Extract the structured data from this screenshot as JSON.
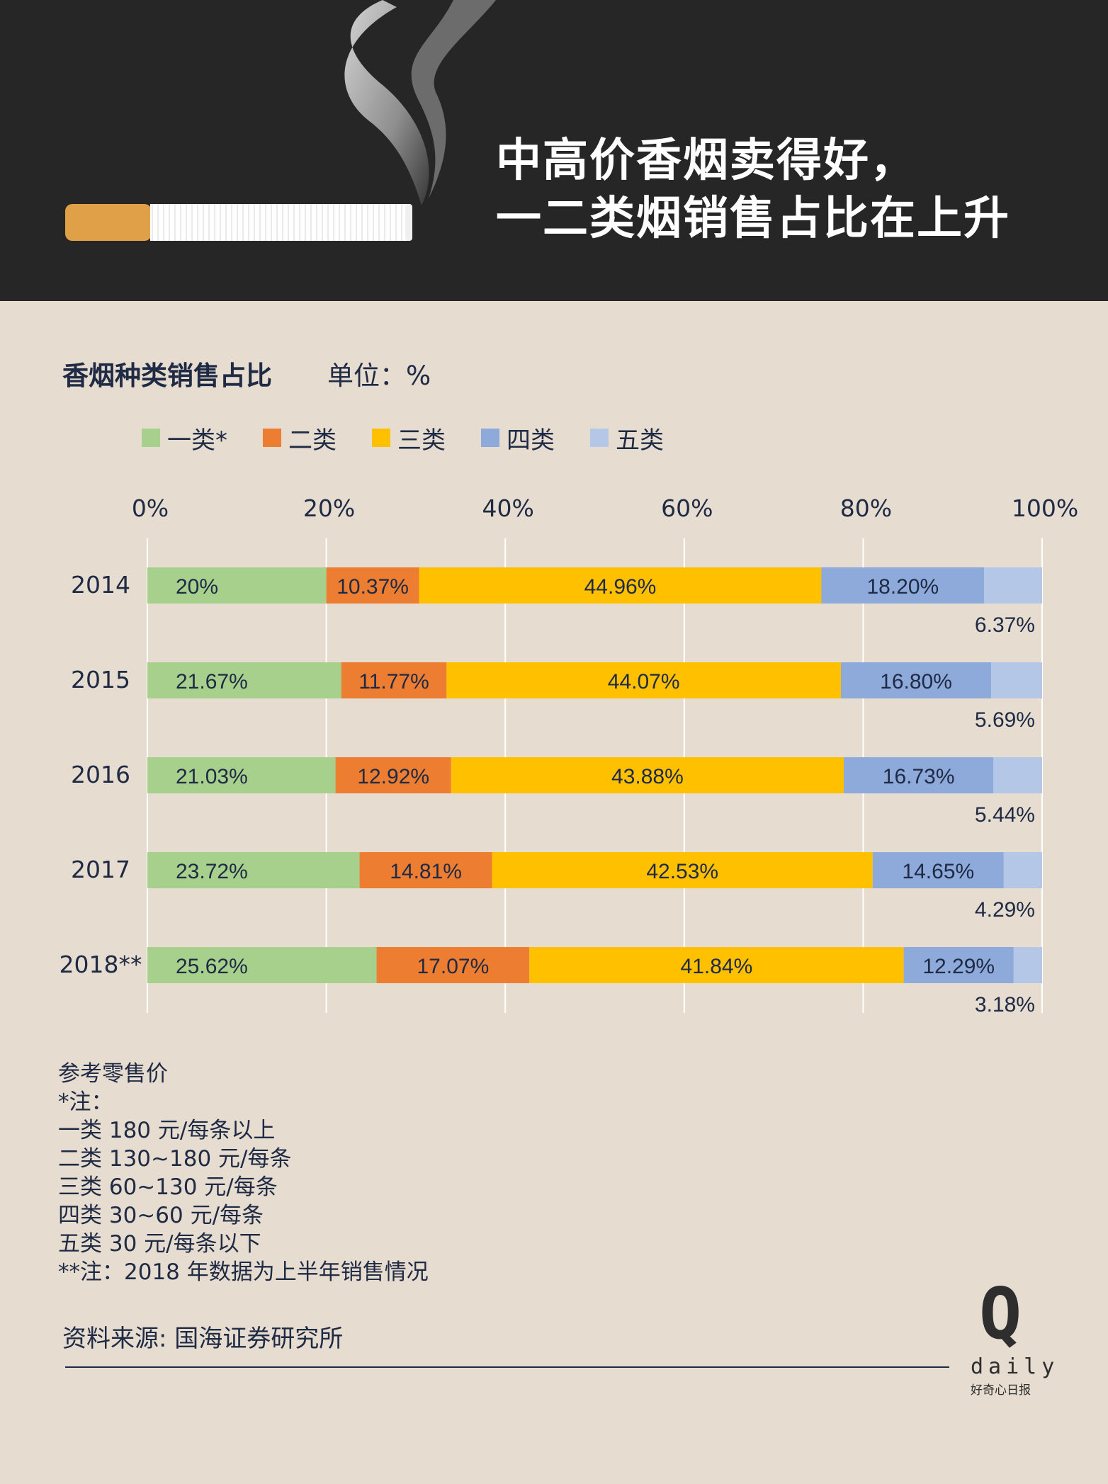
{
  "header": {
    "title_line1": "中高价香烟卖得好，",
    "title_line2": "一二类烟销售占比在上升",
    "background": "#262626"
  },
  "chart_data": {
    "type": "bar",
    "orientation": "horizontal-stacked-100",
    "title": "香烟种类销售占比",
    "unit": "单位：%",
    "xlim": [
      0,
      100
    ],
    "x_ticks": [
      "0%",
      "20%",
      "40%",
      "60%",
      "80%",
      "100%"
    ],
    "grid": true,
    "legend_position": "top-left",
    "categories": [
      "2014",
      "2015",
      "2016",
      "2017",
      "2018**"
    ],
    "series": [
      {
        "name": "一类*",
        "color": "#a8d08d",
        "values": [
          20,
          21.67,
          21.03,
          23.72,
          25.62
        ],
        "labels": [
          "20%",
          "21.67%",
          "21.03%",
          "23.72%",
          "25.62%"
        ]
      },
      {
        "name": "二类",
        "color": "#ed7d31",
        "values": [
          10.37,
          11.77,
          12.92,
          14.81,
          17.07
        ],
        "labels": [
          "10.37%",
          "11.77%",
          "12.92%",
          "14.81%",
          "17.07%"
        ]
      },
      {
        "name": "三类",
        "color": "#ffc000",
        "values": [
          44.96,
          44.07,
          43.88,
          42.53,
          41.84
        ],
        "labels": [
          "44.96%",
          "44.07%",
          "43.88%",
          "42.53%",
          "41.84%"
        ]
      },
      {
        "name": "四类",
        "color": "#8eaadb",
        "values": [
          18.2,
          16.8,
          16.73,
          14.65,
          12.29
        ],
        "labels": [
          "18.20%",
          "16.80%",
          "16.73%",
          "14.65%",
          "12.29%"
        ]
      },
      {
        "name": "五类",
        "color": "#b4c7e7",
        "values": [
          6.37,
          5.69,
          5.44,
          4.29,
          3.18
        ],
        "labels": [
          "6.37%",
          "5.69%",
          "5.44%",
          "4.29%",
          "3.18%"
        ]
      }
    ]
  },
  "notes": {
    "heading": "参考零售价",
    "lines": [
      "*注：",
      "一类 180 元/每条以上",
      "二类 130~180 元/每条",
      "三类  60~130 元/每条",
      "四类  30~60 元/每条",
      "五类  30 元/每条以下",
      "**注：2018 年数据为上半年销售情况"
    ]
  },
  "source": "资料来源: 国海证券研究所",
  "logo": {
    "mark": "Q",
    "word": "daily",
    "subtitle": "好奇心日报"
  },
  "colors": {
    "text": "#1f2a44",
    "background": "#e6dccf"
  }
}
